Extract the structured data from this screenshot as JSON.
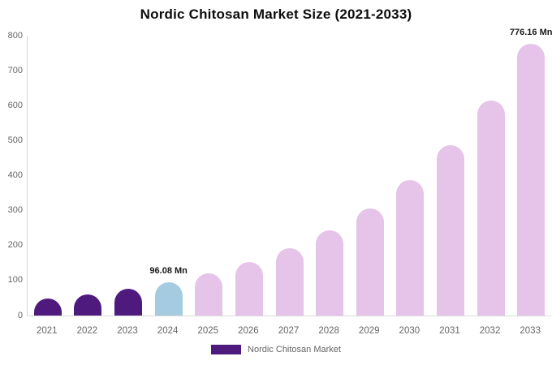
{
  "chart_data": {
    "type": "bar",
    "title": "Nordic Chitosan Market Size (2021-2033)",
    "categories": [
      "2021",
      "2022",
      "2023",
      "2024",
      "2025",
      "2026",
      "2027",
      "2028",
      "2029",
      "2030",
      "2031",
      "2032",
      "2033"
    ],
    "values": [
      47.7,
      60.2,
      76.0,
      96.08,
      121.2,
      152.9,
      192.8,
      243.2,
      306.7,
      386.9,
      488.0,
      615.5,
      776.16
    ],
    "bar_colors": [
      "#4e1a7d",
      "#4e1a7d",
      "#4e1a7d",
      "#a5cbe0",
      "#e6c3e9",
      "#e6c3e9",
      "#e6c3e9",
      "#e6c3e9",
      "#e6c3e9",
      "#e6c3e9",
      "#e6c3e9",
      "#e6c3e9",
      "#e6c3e9"
    ],
    "data_labels": [
      {
        "index": 3,
        "category": "2024",
        "text": "96.08 Mn"
      },
      {
        "index": 12,
        "category": "2033",
        "text": "776.16 Mn"
      }
    ],
    "ylim": [
      0,
      800
    ],
    "yticks": [
      0,
      100,
      200,
      300,
      400,
      500,
      600,
      700,
      800
    ],
    "grid": false,
    "legend": {
      "label": "Nordic Chitosan Market",
      "swatch_color": "#4e1a7d",
      "position": "bottom-center"
    },
    "colors": {
      "historical_bar": "#4e1a7d",
      "base_year_bar": "#a5cbe0",
      "forecast_bar": "#e6c3e9",
      "axis_line": "#d9d9d9",
      "tick_text": "#666666",
      "title_text": "#0d0d0d",
      "data_label_text": "#1a1a1a"
    }
  }
}
